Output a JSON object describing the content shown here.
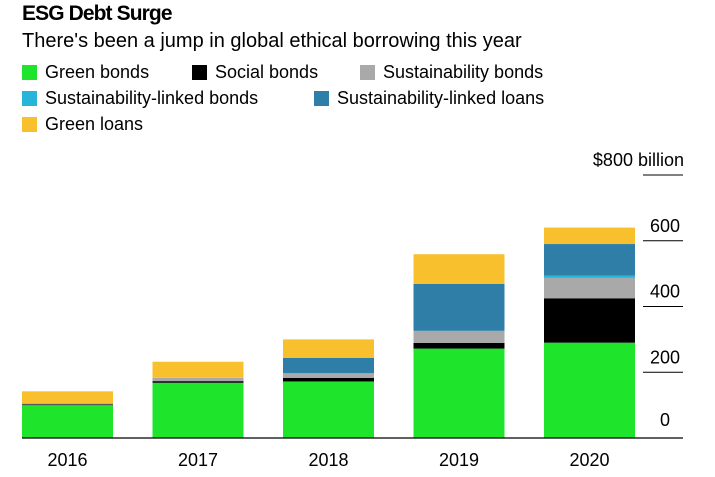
{
  "header": {
    "title": "ESG Debt Surge",
    "subtitle": "There's been a jump in global ethical borrowing this year"
  },
  "chart_data": {
    "type": "bar",
    "stacked": true,
    "categories": [
      "2016",
      "2017",
      "2018",
      "2019",
      "2020"
    ],
    "series": [
      {
        "name": "Green bonds",
        "color": "#1ee42c",
        "values": [
          100,
          168,
          172,
          272,
          290
        ]
      },
      {
        "name": "Social bonds",
        "color": "#000000",
        "values": [
          2,
          5,
          11,
          17,
          135
        ]
      },
      {
        "name": "Sustainability bonds",
        "color": "#a9a9a9",
        "values": [
          4,
          10,
          14,
          37,
          62
        ]
      },
      {
        "name": "Sustainability-linked bonds",
        "color": "#26b5d9",
        "values": [
          0,
          0,
          0,
          0,
          7
        ]
      },
      {
        "name": "Sustainability-linked loans",
        "color": "#2f7ea8",
        "values": [
          0,
          0,
          47,
          143,
          96
        ]
      },
      {
        "name": "Green loans",
        "color": "#f8c02c",
        "values": [
          36,
          49,
          56,
          90,
          50
        ]
      }
    ],
    "y_ticks": [
      "0",
      "200",
      "400",
      "600",
      "$800 billion"
    ],
    "y_tick_values": [
      0,
      200,
      400,
      600,
      800
    ],
    "ylim": [
      0,
      800
    ],
    "legend": "top-left"
  }
}
